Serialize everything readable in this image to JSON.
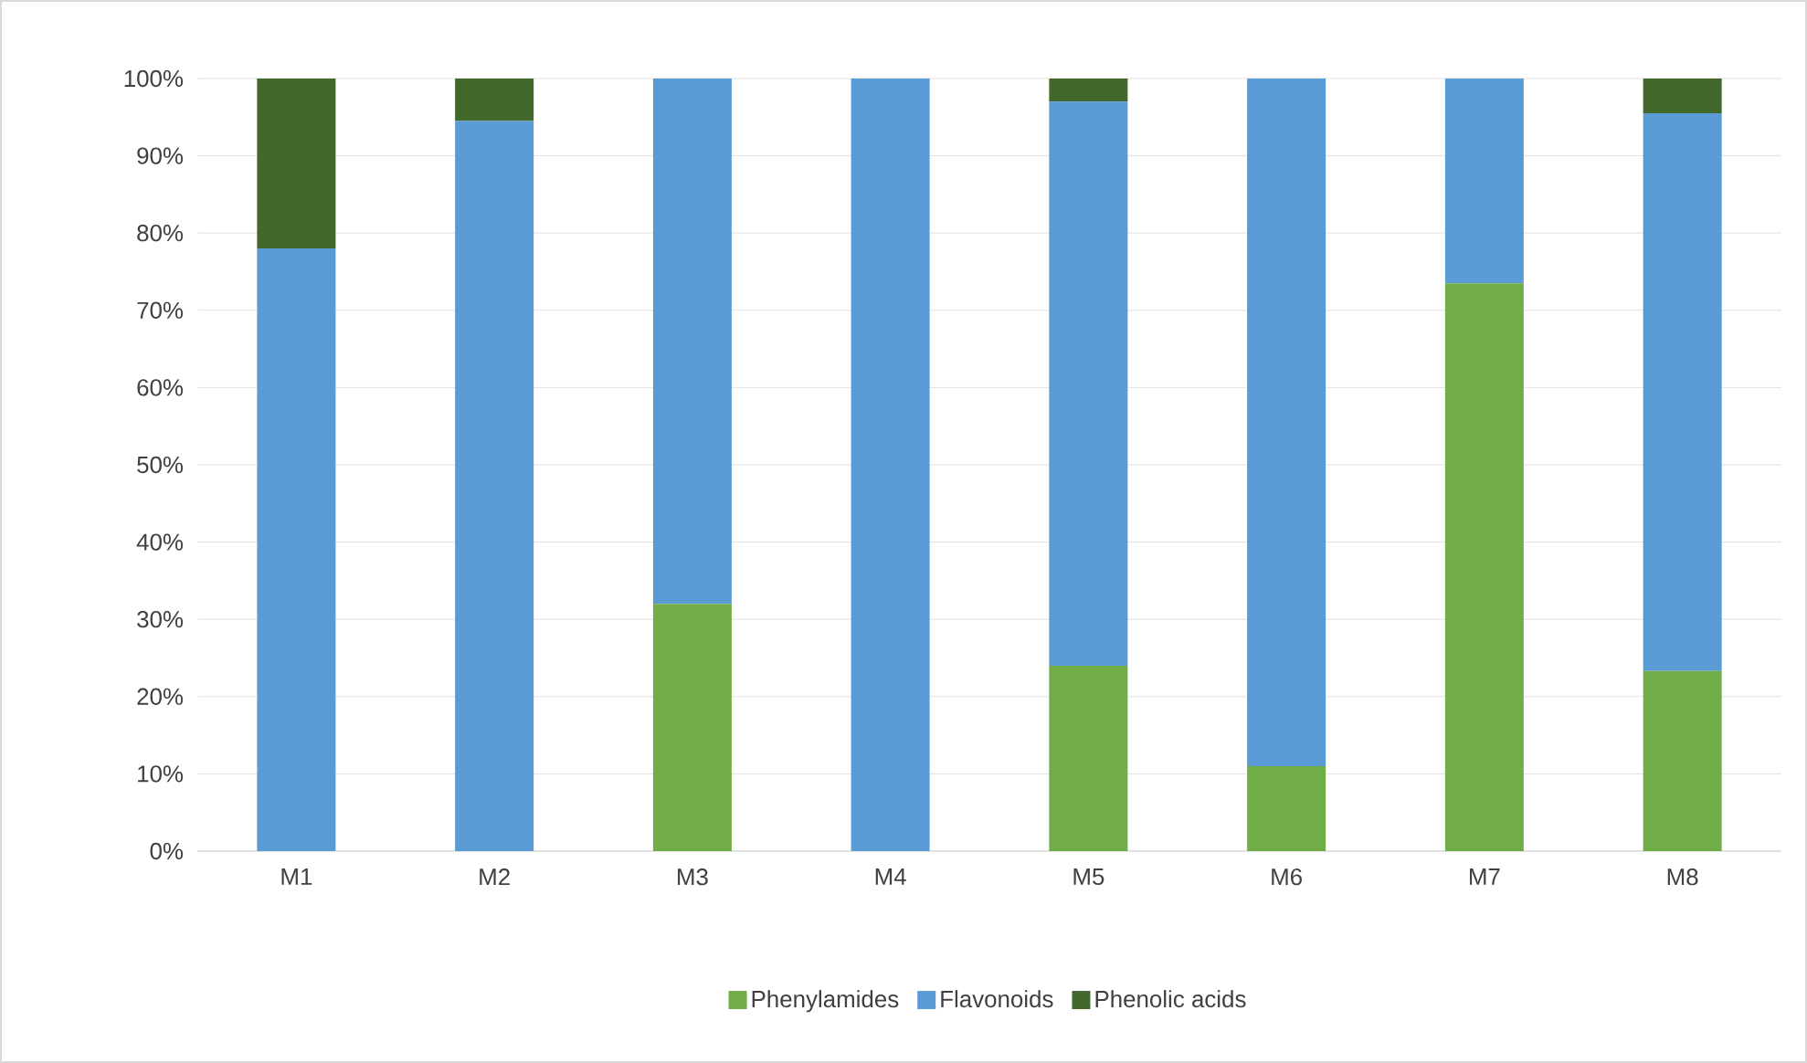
{
  "chart_data": {
    "type": "bar",
    "stacked": true,
    "categories": [
      "M1",
      "M2",
      "M3",
      "M4",
      "M5",
      "M6",
      "M7",
      "M8"
    ],
    "series": [
      {
        "name": "Phenylamides",
        "color": "#70ad47",
        "values": [
          0,
          0,
          32,
          0,
          24,
          11,
          73.5,
          23.3
        ]
      },
      {
        "name": "Flavonoids",
        "color": "#5b9bd5",
        "values": [
          78,
          94.5,
          68,
          100,
          73,
          89,
          26.5,
          72.2
        ]
      },
      {
        "name": "Phenolic acids",
        "color": "#43682b",
        "values": [
          22,
          5.5,
          0,
          0,
          3,
          0,
          0,
          4.5
        ]
      }
    ],
    "ylim": [
      0,
      100
    ],
    "yticks": [
      {
        "value": 0,
        "label": "0%"
      },
      {
        "value": 10,
        "label": "10%"
      },
      {
        "value": 20,
        "label": "20%"
      },
      {
        "value": 30,
        "label": "30%"
      },
      {
        "value": 40,
        "label": "40%"
      },
      {
        "value": 50,
        "label": "50%"
      },
      {
        "value": 60,
        "label": "60%"
      },
      {
        "value": 70,
        "label": "70%"
      },
      {
        "value": 80,
        "label": "80%"
      },
      {
        "value": 90,
        "label": "90%"
      },
      {
        "value": 100,
        "label": "100%"
      }
    ],
    "grid": "y",
    "legend": "bottom"
  }
}
